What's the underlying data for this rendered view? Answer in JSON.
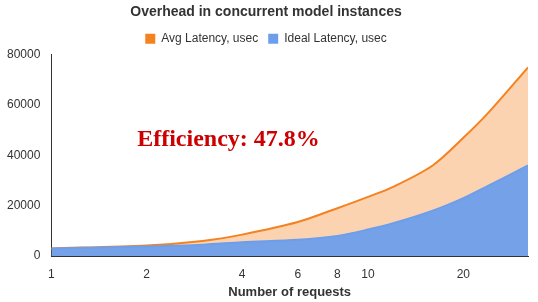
{
  "chart_data": {
    "type": "area",
    "title": "Overhead in concurrent model instances",
    "x_label": "Number of requests",
    "annotation": "Efficiency: 47.8%",
    "x": [
      1,
      2,
      3,
      4,
      6,
      8,
      10,
      12,
      16,
      20,
      24,
      32
    ],
    "series": [
      {
        "name": "Avg Latency, usec",
        "color": "#f58220",
        "values": [
          3000,
          4200,
          6000,
          8500,
          13500,
          19000,
          23500,
          27500,
          36000,
          47000,
          57000,
          75000
        ]
      },
      {
        "name": "Ideal Latency, usec",
        "color": "#6d9eeb",
        "values": [
          3000,
          3800,
          4500,
          5500,
          6500,
          8000,
          10500,
          13000,
          18000,
          23000,
          28000,
          36000
        ]
      }
    ],
    "log": "x",
    "xlim": [
      1,
      32
    ],
    "xticks": [
      1,
      2,
      4,
      6,
      8,
      10,
      20
    ],
    "ylim": [
      0,
      80000
    ],
    "yticks": [
      0,
      20000,
      40000,
      60000,
      80000
    ],
    "grid": false,
    "legend": "top"
  }
}
